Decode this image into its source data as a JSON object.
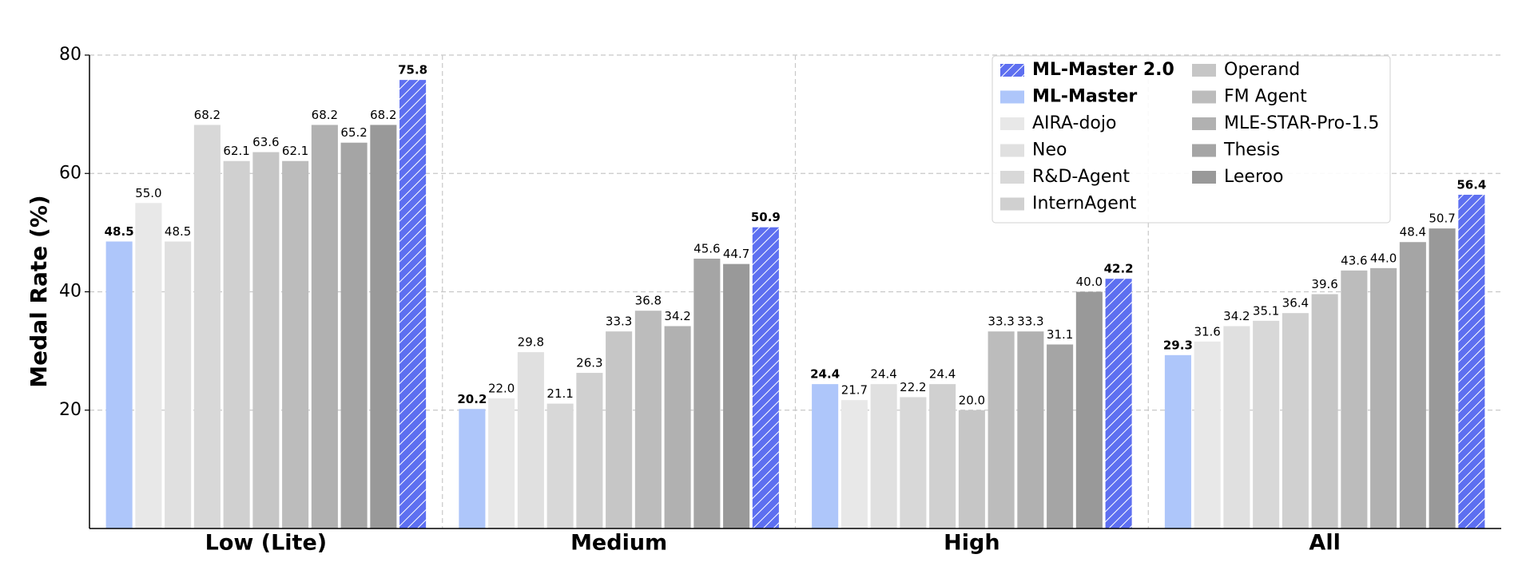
{
  "chart_data": {
    "type": "bar",
    "y_label": "Medal Rate (%)",
    "categories": [
      "Low (Lite)",
      "Medium",
      "High",
      "All"
    ],
    "ylim": [
      0,
      80
    ],
    "yticks": [
      20,
      40,
      60,
      80
    ],
    "grid": true,
    "legend": "upper right",
    "series": [
      {
        "name": "ML-Master",
        "color": "#aec6fa",
        "highlight": true,
        "values": [
          48.5,
          20.2,
          24.4,
          29.3
        ],
        "value_labels": [
          "48.5",
          "20.2",
          "24.4",
          "29.3"
        ]
      },
      {
        "name": "AIRA-dojo",
        "color": "#e8e8e8",
        "values": [
          55.0,
          22.0,
          21.7,
          31.6
        ],
        "value_labels": [
          "55.0",
          "22.0",
          "21.7",
          "31.6"
        ]
      },
      {
        "name": "Neo",
        "color": "#e0e0e0",
        "values": [
          48.5,
          29.8,
          24.4,
          34.2
        ],
        "value_labels": [
          "48.5",
          "29.8",
          "24.4",
          "34.2"
        ]
      },
      {
        "name": "R&D-Agent",
        "color": "#d8d8d8",
        "values": [
          68.2,
          21.1,
          22.2,
          35.1
        ],
        "value_labels": [
          "68.2",
          "21.1",
          "22.2",
          "35.1"
        ]
      },
      {
        "name": "InternAgent",
        "color": "#d0d0d0",
        "values": [
          62.1,
          26.3,
          24.4,
          36.4
        ],
        "value_labels": [
          "62.1",
          "26.3",
          "24.4",
          "36.4"
        ]
      },
      {
        "name": "Operand",
        "color": "#c6c6c6",
        "values": [
          63.6,
          33.3,
          20.0,
          39.6
        ],
        "value_labels": [
          "63.6",
          "33.3",
          "20.0",
          "39.6"
        ]
      },
      {
        "name": "FM Agent",
        "color": "#bcbcbc",
        "values": [
          62.1,
          36.8,
          33.3,
          43.6
        ],
        "value_labels": [
          "62.1",
          "36.8",
          "33.3",
          "43.6"
        ]
      },
      {
        "name": "MLE-STAR-Pro-1.5",
        "color": "#b1b1b1",
        "values": [
          68.2,
          34.2,
          33.3,
          44.0
        ],
        "value_labels": [
          "68.2",
          "34.2",
          "33.3",
          "44.0"
        ]
      },
      {
        "name": "Thesis",
        "color": "#a5a5a5",
        "values": [
          65.2,
          45.6,
          31.1,
          48.4
        ],
        "value_labels": [
          "65.2",
          "45.6",
          "31.1",
          "48.4"
        ]
      },
      {
        "name": "Leeroo",
        "color": "#999999",
        "values": [
          68.2,
          44.7,
          40.0,
          50.7
        ],
        "value_labels": [
          "68.2",
          "44.7",
          "40.0",
          "50.7"
        ]
      },
      {
        "name": "ML-Master 2.0",
        "color": "#5d6ff0",
        "highlight": true,
        "hatch": true,
        "values": [
          75.8,
          50.9,
          42.2,
          56.4
        ],
        "value_labels": [
          "75.8",
          "50.9",
          "42.2",
          "56.4"
        ]
      }
    ]
  }
}
